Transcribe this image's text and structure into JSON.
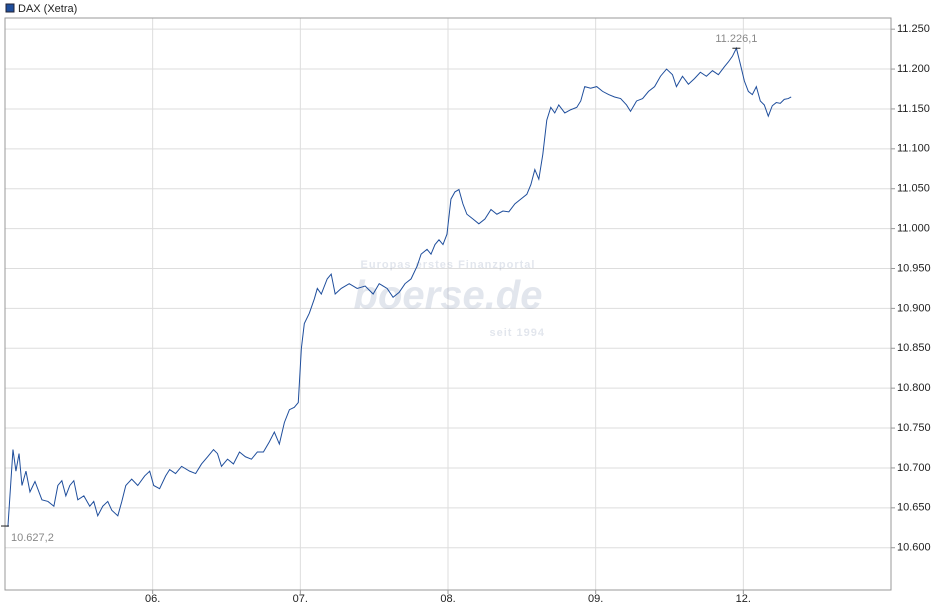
{
  "chart_data": {
    "type": "line",
    "legend": "DAX (Xetra)",
    "legend_position": "top-left",
    "color": "#1f4e9c",
    "grid": true,
    "watermark": {
      "top": "Europas erstes Finanzportal",
      "main": "boerse.de",
      "bottom": "seit 1994"
    },
    "xlim": [
      0,
      6
    ],
    "xticks": [
      {
        "value": 1,
        "label": "06."
      },
      {
        "value": 2,
        "label": "07."
      },
      {
        "value": 3,
        "label": "08."
      },
      {
        "value": 4,
        "label": "09."
      },
      {
        "value": 5,
        "label": "12."
      }
    ],
    "ylim": [
      10547,
      11264
    ],
    "yticks": [
      {
        "value": 10600,
        "label": "10.600"
      },
      {
        "value": 10650,
        "label": "10.650"
      },
      {
        "value": 10700,
        "label": "10.700"
      },
      {
        "value": 10750,
        "label": "10.750"
      },
      {
        "value": 10800,
        "label": "10.800"
      },
      {
        "value": 10850,
        "label": "10.850"
      },
      {
        "value": 10900,
        "label": "10.900"
      },
      {
        "value": 10950,
        "label": "10.950"
      },
      {
        "value": 11000,
        "label": "11.000"
      },
      {
        "value": 11050,
        "label": "11.050"
      },
      {
        "value": 11100,
        "label": "11.100"
      },
      {
        "value": 11150,
        "label": "11.150"
      },
      {
        "value": 11200,
        "label": "11.200"
      },
      {
        "value": 11250,
        "label": "11.250"
      }
    ],
    "annotations": [
      {
        "label": "11.226,1",
        "x": 4.953,
        "y": 11226.1,
        "position": "above"
      },
      {
        "label": "10.627,2",
        "x": 0,
        "y": 10627.2,
        "position": "below"
      }
    ],
    "x": [
      0,
      0.02,
      0.054,
      0.074,
      0.095,
      0.115,
      0.142,
      0.169,
      0.203,
      0.25,
      0.291,
      0.331,
      0.358,
      0.385,
      0.412,
      0.439,
      0.466,
      0.493,
      0.534,
      0.574,
      0.601,
      0.628,
      0.662,
      0.696,
      0.723,
      0.764,
      0.791,
      0.818,
      0.858,
      0.899,
      0.946,
      0.98,
      1.007,
      1.047,
      1.088,
      1.115,
      1.155,
      1.196,
      1.25,
      1.291,
      1.331,
      1.372,
      1.412,
      1.439,
      1.466,
      1.507,
      1.547,
      1.588,
      1.628,
      1.669,
      1.709,
      1.75,
      1.791,
      1.824,
      1.858,
      1.892,
      1.926,
      1.959,
      1.986,
      2.007,
      2.027,
      2.061,
      2.095,
      2.115,
      2.142,
      2.182,
      2.209,
      2.236,
      2.277,
      2.331,
      2.385,
      2.439,
      2.493,
      2.534,
      2.588,
      2.628,
      2.669,
      2.709,
      2.75,
      2.791,
      2.818,
      2.858,
      2.885,
      2.912,
      2.939,
      2.966,
      2.993,
      3.02,
      3.047,
      3.074,
      3.101,
      3.128,
      3.169,
      3.209,
      3.25,
      3.291,
      3.331,
      3.372,
      3.412,
      3.453,
      3.493,
      3.534,
      3.561,
      3.588,
      3.615,
      3.642,
      3.669,
      3.696,
      3.723,
      3.75,
      3.791,
      3.831,
      3.872,
      3.899,
      3.926,
      3.966,
      4.007,
      4.047,
      4.088,
      4.128,
      4.169,
      4.209,
      4.236,
      4.277,
      4.318,
      4.358,
      4.399,
      4.439,
      4.48,
      4.52,
      4.547,
      4.588,
      4.628,
      4.669,
      4.709,
      4.75,
      4.791,
      4.831,
      4.872,
      4.899,
      4.926,
      4.953,
      4.98,
      5.007,
      5.034,
      5.061,
      5.088,
      5.115,
      5.142,
      5.169,
      5.196,
      5.223,
      5.25,
      5.277,
      5.304,
      5.324
    ],
    "values": [
      10627.2,
      10627,
      10723,
      10696,
      10718,
      10678,
      10696,
      10670,
      10683,
      10660,
      10658,
      10652,
      10678,
      10684,
      10665,
      10678,
      10684,
      10660,
      10665,
      10652,
      10658,
      10640,
      10652,
      10658,
      10647,
      10640,
      10658,
      10678,
      10686,
      10678,
      10690,
      10696,
      10678,
      10674,
      10690,
      10698,
      10693,
      10702,
      10696,
      10693,
      10705,
      10714,
      10723,
      10718,
      10702,
      10711,
      10705,
      10720,
      10714,
      10711,
      10720,
      10720,
      10733,
      10745,
      10730,
      10757,
      10773,
      10776,
      10782,
      10850,
      10881,
      10894,
      10912,
      10925,
      10918,
      10937,
      10943,
      10918,
      10925,
      10931,
      10925,
      10928,
      10918,
      10931,
      10925,
      10914,
      10920,
      10931,
      10937,
      10953,
      10968,
      10974,
      10968,
      10980,
      10986,
      10980,
      10993,
      11037,
      11046,
      11049,
      11031,
      11018,
      11012,
      11006,
      11012,
      11024,
      11018,
      11022,
      11021,
      11031,
      11037,
      11043,
      11055,
      11074,
      11062,
      11093,
      11136,
      11152,
      11145,
      11155,
      11145,
      11149,
      11152,
      11160,
      11178,
      11176,
      11178,
      11172,
      11168,
      11165,
      11163,
      11155,
      11147,
      11160,
      11163,
      11172,
      11178,
      11191,
      11200,
      11193,
      11178,
      11191,
      11181,
      11188,
      11196,
      11191,
      11198,
      11193,
      11203,
      11209,
      11216,
      11226.1,
      11206,
      11185,
      11172,
      11168,
      11178,
      11160,
      11155,
      11141,
      11154,
      11158,
      11157,
      11162,
      11163,
      11165
    ]
  }
}
